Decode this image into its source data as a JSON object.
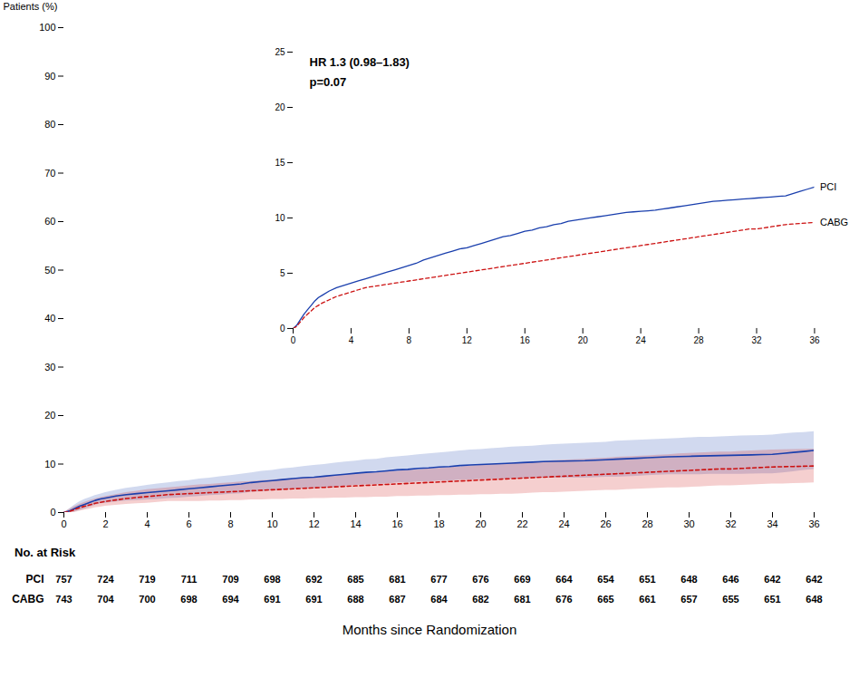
{
  "chart_data": {
    "type": "line",
    "ylabel": "Patients (%)",
    "xlabel": "Months since Randomization",
    "xlim": [
      0,
      36
    ],
    "ylim": [
      0,
      100
    ],
    "xticks": [
      0,
      2,
      4,
      6,
      8,
      10,
      12,
      14,
      16,
      18,
      20,
      22,
      24,
      26,
      28,
      30,
      32,
      34,
      36
    ],
    "yticks": [
      0,
      10,
      20,
      30,
      40,
      50,
      60,
      70,
      80,
      90,
      100
    ],
    "x": [
      0,
      0.25,
      0.5,
      0.75,
      1.0,
      1.25,
      1.5,
      1.75,
      2.0,
      2.5,
      3.0,
      3.5,
      4.0,
      4.5,
      5.0,
      5.5,
      6.0,
      6.5,
      7.0,
      7.5,
      8.0,
      8.5,
      9.0,
      9.5,
      10.0,
      10.5,
      11.0,
      11.5,
      12.0,
      12.5,
      13.0,
      13.5,
      14.0,
      14.5,
      15.0,
      15.5,
      16.0,
      16.5,
      17.0,
      17.5,
      18.0,
      18.5,
      19.0,
      19.5,
      20.0,
      20.5,
      21.0,
      21.5,
      22.0,
      22.5,
      23.0,
      23.5,
      24.0,
      24.5,
      25.0,
      25.5,
      26.0,
      26.5,
      27.0,
      27.5,
      28.0,
      28.5,
      29.0,
      29.5,
      30.0,
      30.5,
      31.0,
      31.5,
      32.0,
      32.5,
      33.0,
      33.5,
      34.0,
      34.5,
      35.0,
      35.5,
      36.0
    ],
    "series": [
      {
        "name": "PCI",
        "color": "#1a3fad",
        "line_style": "solid",
        "values": [
          0,
          0.3,
          0.8,
          1.3,
          1.7,
          2.1,
          2.5,
          2.8,
          3.0,
          3.4,
          3.7,
          3.9,
          4.1,
          4.3,
          4.5,
          4.7,
          4.9,
          5.1,
          5.3,
          5.5,
          5.7,
          5.9,
          6.2,
          6.4,
          6.6,
          6.8,
          7.0,
          7.2,
          7.3,
          7.5,
          7.7,
          7.9,
          8.1,
          8.3,
          8.4,
          8.6,
          8.8,
          8.9,
          9.1,
          9.2,
          9.4,
          9.5,
          9.7,
          9.8,
          9.9,
          10.0,
          10.1,
          10.2,
          10.3,
          10.4,
          10.5,
          10.55,
          10.6,
          10.65,
          10.7,
          10.8,
          10.9,
          11.0,
          11.1,
          11.2,
          11.3,
          11.4,
          11.5,
          11.55,
          11.6,
          11.65,
          11.7,
          11.75,
          11.8,
          11.85,
          11.9,
          11.95,
          12.0,
          12.2,
          12.4,
          12.6,
          12.8
        ],
        "upper": [
          0,
          0.7,
          1.5,
          2.2,
          2.7,
          3.1,
          3.5,
          3.8,
          4.1,
          4.6,
          5.0,
          5.3,
          5.6,
          5.9,
          6.1,
          6.4,
          6.6,
          6.9,
          7.1,
          7.4,
          7.6,
          7.9,
          8.2,
          8.5,
          8.7,
          9.0,
          9.2,
          9.5,
          9.7,
          9.9,
          10.2,
          10.4,
          10.6,
          10.9,
          11.0,
          11.3,
          11.5,
          11.7,
          11.9,
          12.1,
          12.3,
          12.5,
          12.7,
          12.9,
          13.0,
          13.2,
          13.3,
          13.5,
          13.6,
          13.7,
          13.9,
          14.0,
          14.1,
          14.2,
          14.3,
          14.4,
          14.5,
          14.7,
          14.8,
          14.9,
          15.0,
          15.1,
          15.2,
          15.3,
          15.4,
          15.5,
          15.5,
          15.6,
          15.7,
          15.8,
          15.85,
          15.9,
          16.0,
          16.2,
          16.4,
          16.5,
          16.7
        ],
        "lower": [
          0,
          0.0,
          0.1,
          0.4,
          0.7,
          1.1,
          1.5,
          1.8,
          1.9,
          2.2,
          2.4,
          2.5,
          2.6,
          2.7,
          2.9,
          3.0,
          3.2,
          3.3,
          3.5,
          3.6,
          3.8,
          3.9,
          4.2,
          4.3,
          4.5,
          4.6,
          4.8,
          4.9,
          4.9,
          5.1,
          5.2,
          5.4,
          5.6,
          5.7,
          5.8,
          5.9,
          6.1,
          6.1,
          6.3,
          6.3,
          6.5,
          6.5,
          6.7,
          6.7,
          6.8,
          6.8,
          6.9,
          6.9,
          7.0,
          7.1,
          7.1,
          7.1,
          7.1,
          7.1,
          7.1,
          7.2,
          7.3,
          7.3,
          7.4,
          7.5,
          7.6,
          7.7,
          7.8,
          7.8,
          7.8,
          7.8,
          7.9,
          7.9,
          7.9,
          7.9,
          7.95,
          8.0,
          8.0,
          8.2,
          8.4,
          8.7,
          8.9
        ]
      },
      {
        "name": "CABG",
        "color": "#cc1111",
        "line_style": "dashed",
        "values": [
          0,
          0.2,
          0.6,
          1.0,
          1.3,
          1.6,
          1.9,
          2.1,
          2.3,
          2.6,
          2.9,
          3.1,
          3.3,
          3.5,
          3.7,
          3.8,
          3.9,
          4.0,
          4.1,
          4.2,
          4.3,
          4.4,
          4.5,
          4.6,
          4.7,
          4.8,
          4.9,
          5.0,
          5.1,
          5.2,
          5.3,
          5.4,
          5.5,
          5.6,
          5.7,
          5.8,
          5.9,
          6.0,
          6.1,
          6.2,
          6.3,
          6.4,
          6.5,
          6.6,
          6.7,
          6.8,
          6.9,
          7.0,
          7.1,
          7.2,
          7.3,
          7.4,
          7.5,
          7.6,
          7.7,
          7.8,
          7.9,
          8.0,
          8.1,
          8.2,
          8.3,
          8.4,
          8.5,
          8.6,
          8.7,
          8.8,
          8.9,
          9.0,
          9.0,
          9.1,
          9.2,
          9.3,
          9.4,
          9.45,
          9.5,
          9.55,
          9.6
        ],
        "upper": [
          0,
          0.6,
          1.2,
          1.7,
          2.1,
          2.5,
          2.8,
          3.1,
          3.3,
          3.7,
          4.1,
          4.4,
          4.7,
          4.9,
          5.1,
          5.3,
          5.5,
          5.7,
          5.8,
          6.0,
          6.1,
          6.3,
          6.4,
          6.6,
          6.7,
          6.9,
          7.0,
          7.2,
          7.3,
          7.5,
          7.6,
          7.8,
          7.9,
          8.1,
          8.2,
          8.4,
          8.5,
          8.7,
          8.8,
          9.0,
          9.1,
          9.3,
          9.4,
          9.6,
          9.7,
          9.9,
          10.0,
          10.2,
          10.3,
          10.4,
          10.5,
          10.7,
          10.8,
          10.9,
          11.0,
          11.1,
          11.2,
          11.4,
          11.5,
          11.6,
          11.7,
          11.8,
          11.9,
          12.1,
          12.2,
          12.3,
          12.4,
          12.5,
          12.5,
          12.6,
          12.7,
          12.8,
          12.9,
          12.95,
          13.0,
          13.05,
          13.1
        ],
        "lower": [
          0,
          0.0,
          0.0,
          0.3,
          0.5,
          0.7,
          1.0,
          1.1,
          1.3,
          1.5,
          1.7,
          1.8,
          1.9,
          2.1,
          2.3,
          2.3,
          2.3,
          2.3,
          2.4,
          2.4,
          2.5,
          2.5,
          2.6,
          2.6,
          2.7,
          2.7,
          2.8,
          2.8,
          2.9,
          2.9,
          3.0,
          3.0,
          3.1,
          3.1,
          3.2,
          3.2,
          3.3,
          3.3,
          3.4,
          3.4,
          3.5,
          3.5,
          3.6,
          3.6,
          3.7,
          3.7,
          3.8,
          3.8,
          3.9,
          4.0,
          4.1,
          4.1,
          4.2,
          4.3,
          4.4,
          4.5,
          4.6,
          4.6,
          4.7,
          4.8,
          4.9,
          5.0,
          5.1,
          5.1,
          5.2,
          5.3,
          5.4,
          5.5,
          5.5,
          5.6,
          5.7,
          5.8,
          5.9,
          5.9,
          6.0,
          6.05,
          6.1
        ]
      }
    ],
    "inset": {
      "type": "line",
      "xlim": [
        0,
        36
      ],
      "ylim": [
        0,
        25
      ],
      "xticks": [
        0,
        4,
        8,
        12,
        16,
        20,
        24,
        28,
        32,
        36
      ],
      "yticks": [
        0,
        5,
        10,
        15,
        20,
        25
      ],
      "annotations": [
        "HR 1.3 (0.98–1.83)",
        "p=0.07"
      ]
    },
    "risk_table": {
      "title": "No. at Risk",
      "x": [
        0,
        2,
        4,
        6,
        8,
        10,
        12,
        14,
        16,
        18,
        20,
        22,
        24,
        26,
        28,
        30,
        32,
        34,
        36
      ],
      "rows": [
        {
          "name": "PCI",
          "values": [
            757,
            724,
            719,
            711,
            709,
            698,
            692,
            685,
            681,
            677,
            676,
            669,
            664,
            654,
            651,
            648,
            646,
            642,
            642
          ]
        },
        {
          "name": "CABG",
          "values": [
            743,
            704,
            700,
            698,
            694,
            691,
            691,
            688,
            687,
            684,
            682,
            681,
            676,
            665,
            661,
            657,
            655,
            651,
            648
          ]
        }
      ]
    }
  }
}
